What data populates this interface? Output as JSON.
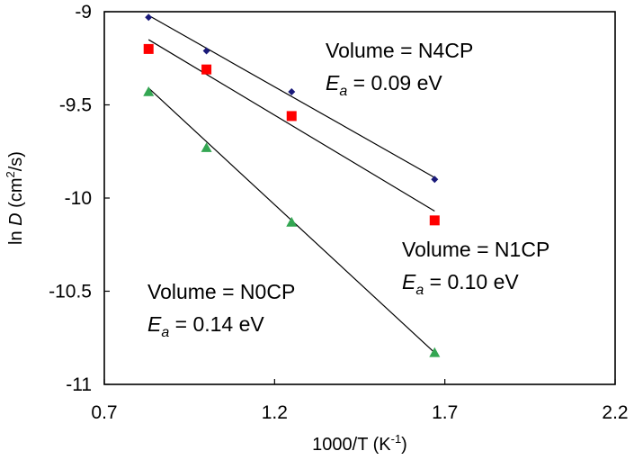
{
  "chart_data": {
    "type": "scatter",
    "title": "",
    "xlabel": "1000/T   (K-1)",
    "xlabel_parts": {
      "main": "1000/T   (K",
      "sup": "-1",
      "tail": ")"
    },
    "ylabel": "ln D (cm2/s)",
    "ylabel_parts": {
      "pre": "ln ",
      "italic": "D",
      "mid": " (cm",
      "sup": "2",
      "tail": "/s)"
    },
    "xlim": [
      0.7,
      2.2
    ],
    "ylim": [
      -11,
      -9
    ],
    "xticks": [
      0.7,
      1.2,
      1.7,
      2.2
    ],
    "yticks": [
      -9,
      -9.5,
      -10,
      -10.5,
      -11
    ],
    "xtick_labels": [
      "0.7",
      "1.2",
      "1.7",
      "2.2"
    ],
    "ytick_labels": [
      "-9",
      "-9.5",
      "-10",
      "-10.5",
      "-11"
    ],
    "grid": false,
    "series": [
      {
        "name": "N4CP",
        "marker": "diamond",
        "color": "#1a1a7a",
        "x": [
          0.83,
          1.0,
          1.25,
          1.67
        ],
        "y": [
          -9.03,
          -9.21,
          -9.43,
          -9.9
        ],
        "fit": {
          "x": [
            0.83,
            1.67
          ],
          "y": [
            -9.02,
            -9.89
          ]
        }
      },
      {
        "name": "N1CP",
        "marker": "square",
        "color": "#ff0000",
        "x": [
          0.83,
          1.0,
          1.25,
          1.67
        ],
        "y": [
          -9.2,
          -9.31,
          -9.56,
          -10.12
        ],
        "fit": {
          "x": [
            0.83,
            1.67
          ],
          "y": [
            -9.15,
            -10.07
          ]
        }
      },
      {
        "name": "N0CP",
        "marker": "triangle",
        "color": "#33a652",
        "x": [
          0.83,
          1.0,
          1.25,
          1.67
        ],
        "y": [
          -9.43,
          -9.73,
          -10.13,
          -10.83
        ],
        "fit": {
          "x": [
            0.83,
            1.67
          ],
          "y": [
            -9.41,
            -10.83
          ]
        }
      }
    ],
    "annotations": [
      {
        "series": "N4CP",
        "line1": "Volume = N4CP",
        "ea_symbol": "E",
        "ea_sub": "a",
        "ea_value": " = 0.09 eV"
      },
      {
        "series": "N1CP",
        "line1": "Volume = N1CP",
        "ea_symbol": "E",
        "ea_sub": "a",
        "ea_value": " = 0.10 eV"
      },
      {
        "series": "N0CP",
        "line1": "Volume = N0CP",
        "ea_symbol": "E",
        "ea_sub": "a",
        "ea_value": " = 0.14 eV"
      }
    ]
  }
}
